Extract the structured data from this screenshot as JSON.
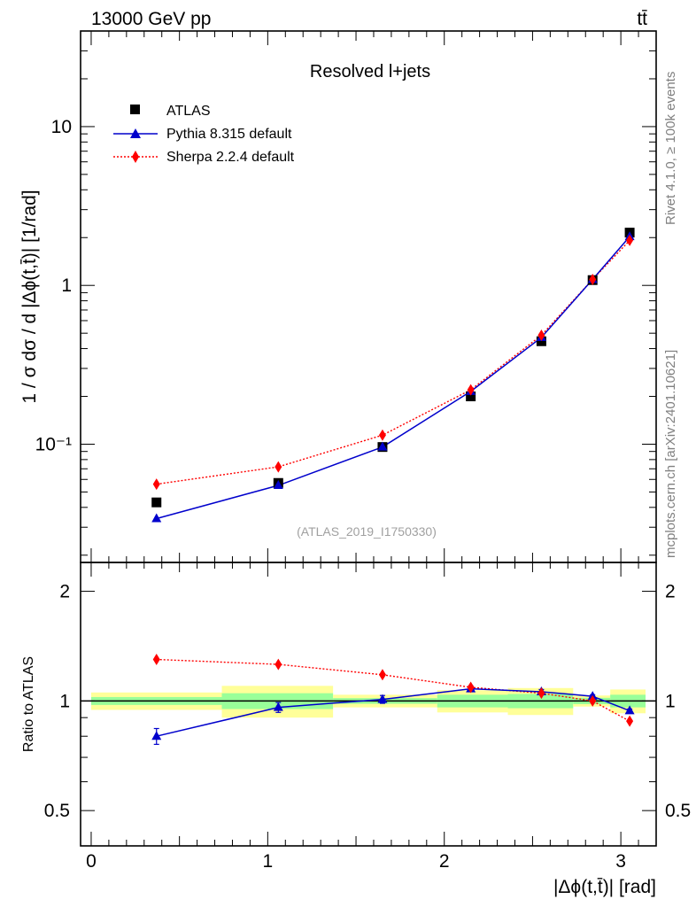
{
  "header": {
    "energy": "13000 GeV pp",
    "process": "tt̄"
  },
  "side_text": {
    "rivet": "Rivet 4.1.0, ≥ 100k events",
    "mcplots": "mcplots.cern.ch [arXiv:2401.10621]"
  },
  "chart_data": [
    {
      "type": "scatter",
      "panel": "main",
      "title": "Resolved l+jets",
      "watermark": "(ATLAS_2019_I1750330)",
      "ylabel": "1 / σ dσ / d |Δϕ(t,t̄)| [1/rad]",
      "yscale": "log",
      "ylim": [
        0.018,
        40
      ],
      "xlim": [
        -0.06,
        3.2
      ],
      "yticks": [
        {
          "value": 0.1,
          "label": "10⁻¹"
        },
        {
          "value": 1,
          "label": "1"
        },
        {
          "value": 10,
          "label": "10"
        }
      ],
      "legend": {
        "placement": "top-left",
        "entries": [
          "ATLAS",
          "Pythia 8.315 default",
          "Sherpa 2.2.4 default"
        ]
      },
      "series": [
        {
          "name": "ATLAS",
          "style": "square",
          "color": "#000000",
          "x": [
            0.37,
            1.06,
            1.65,
            2.15,
            2.55,
            2.84,
            3.05
          ],
          "y": [
            0.043,
            0.057,
            0.096,
            0.2,
            0.445,
            1.08,
            2.15
          ]
        },
        {
          "name": "Pythia 8.315 default",
          "style": "triangle-solid",
          "color": "#0000cc",
          "x": [
            0.37,
            1.06,
            1.65,
            2.15,
            2.55,
            2.84,
            3.05
          ],
          "y": [
            0.034,
            0.055,
            0.096,
            0.215,
            0.47,
            1.09,
            2.03
          ]
        },
        {
          "name": "Sherpa 2.2.4 default",
          "style": "diamond-dotted",
          "color": "#ff0000",
          "x": [
            0.37,
            1.06,
            1.65,
            2.15,
            2.55,
            2.84,
            3.05
          ],
          "y": [
            0.056,
            0.072,
            0.114,
            0.22,
            0.485,
            1.09,
            1.92
          ]
        }
      ]
    },
    {
      "type": "scatter",
      "panel": "ratio",
      "ylabel": "Ratio to ATLAS",
      "xlabel": "|Δϕ(t,t̄)| [rad]",
      "ylim": [
        0.4,
        2.4
      ],
      "yscale": "log",
      "xlim": [
        -0.06,
        3.2
      ],
      "xticks": [
        {
          "value": 0,
          "label": "0"
        },
        {
          "value": 1,
          "label": "1"
        },
        {
          "value": 2,
          "label": "2"
        },
        {
          "value": 3,
          "label": "3"
        }
      ],
      "yticks": [
        {
          "value": 0.5,
          "label": "0.5"
        },
        {
          "value": 1,
          "label": "1"
        },
        {
          "value": 2,
          "label": "2"
        }
      ],
      "bins": [
        {
          "lo": 0.0,
          "hi": 0.74,
          "stat": 0.025,
          "total": 0.055
        },
        {
          "lo": 0.74,
          "hi": 1.37,
          "stat": 0.05,
          "total": 0.1
        },
        {
          "lo": 1.37,
          "hi": 1.96,
          "stat": 0.018,
          "total": 0.04
        },
        {
          "lo": 1.96,
          "hi": 2.36,
          "stat": 0.04,
          "total": 0.07
        },
        {
          "lo": 2.36,
          "hi": 2.73,
          "stat": 0.045,
          "total": 0.085
        },
        {
          "lo": 2.73,
          "hi": 2.94,
          "stat": 0.02,
          "total": 0.035
        },
        {
          "lo": 2.94,
          "hi": 3.14,
          "stat": 0.04,
          "total": 0.075
        }
      ],
      "series": [
        {
          "name": "Pythia 8.315 default",
          "color": "#0000cc",
          "x": [
            0.37,
            1.06,
            1.65,
            2.15,
            2.55,
            2.84,
            3.05
          ],
          "y": [
            0.8,
            0.96,
            1.01,
            1.08,
            1.06,
            1.03,
            0.94
          ],
          "err": [
            0.04,
            0.03,
            0.025,
            0.02,
            0.015,
            0.01,
            0.01
          ]
        },
        {
          "name": "Sherpa 2.2.4 default",
          "color": "#ff0000",
          "x": [
            0.37,
            1.06,
            1.65,
            2.15,
            2.55,
            2.84,
            3.05
          ],
          "y": [
            1.3,
            1.26,
            1.18,
            1.09,
            1.05,
            1.0,
            0.88
          ],
          "err": [
            0.0,
            0.0,
            0.0,
            0.0,
            0.0,
            0.0,
            0.0
          ]
        }
      ]
    }
  ]
}
